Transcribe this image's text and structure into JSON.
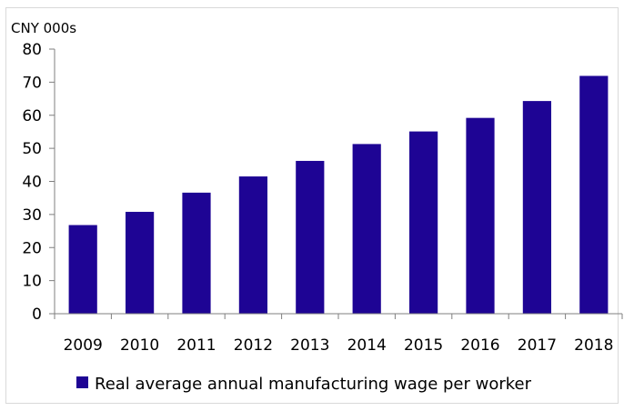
{
  "chart_data": {
    "type": "bar",
    "categories": [
      "2009",
      "2010",
      "2011",
      "2012",
      "2013",
      "2014",
      "2015",
      "2016",
      "2017",
      "2018"
    ],
    "series": [
      {
        "name": "Real average annual manufacturing wage per worker",
        "values": [
          26.8,
          30.8,
          36.6,
          41.5,
          46.2,
          51.3,
          55.1,
          59.2,
          64.3,
          71.9
        ],
        "color": "#1e0494"
      }
    ],
    "ylabel": "CNY 000s",
    "xlabel": "",
    "ylim": [
      0,
      80
    ],
    "yticks": [
      "0",
      "10",
      "20",
      "30",
      "40",
      "50",
      "60",
      "70",
      "80"
    ],
    "grid": false,
    "legend": "bottom-center"
  }
}
